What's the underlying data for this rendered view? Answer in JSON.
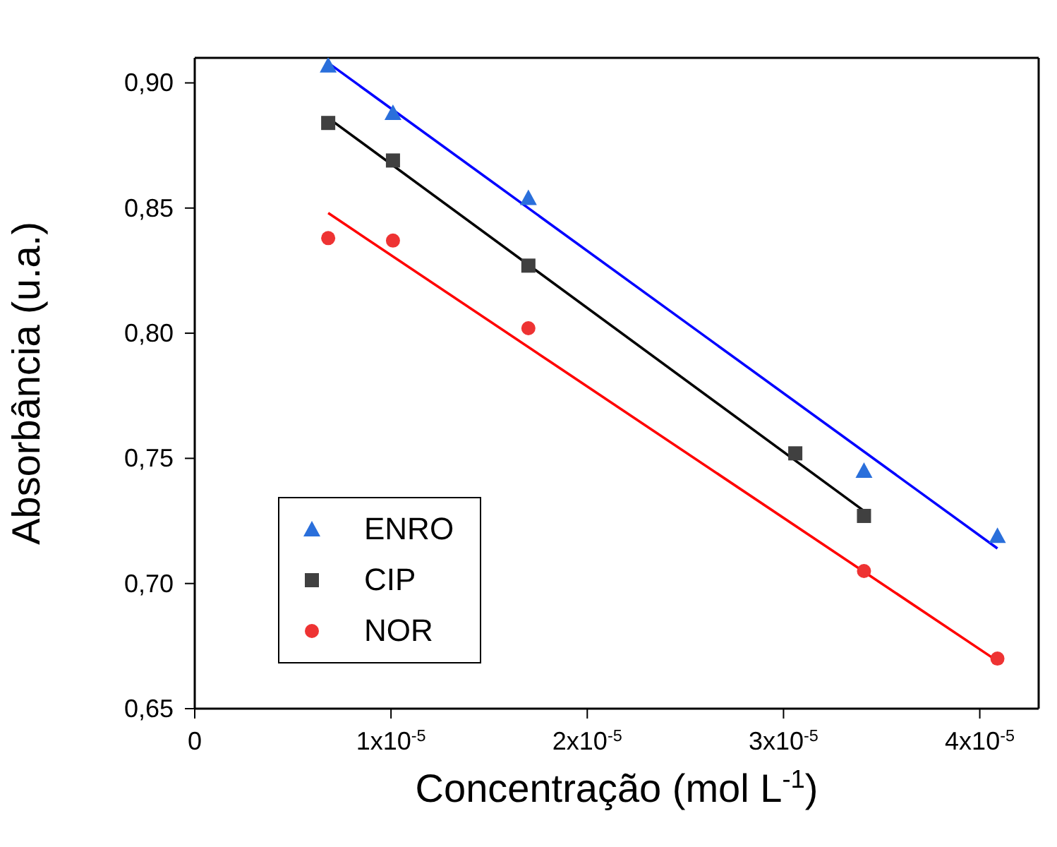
{
  "chart_data": {
    "type": "scatter",
    "xlabel": "Concentração (mol L$^{-1}$)",
    "ylabel": "Absorbância (u.a.)",
    "xlim": [
      0,
      4.3e-05
    ],
    "xticks": [
      {
        "value": 0,
        "label": "0"
      },
      {
        "value": 1e-05,
        "label": "1x10$^{-5}$"
      },
      {
        "value": 2e-05,
        "label": "2x10$^{-5}$"
      },
      {
        "value": 3e-05,
        "label": "3x10$^{-5}$"
      },
      {
        "value": 4e-05,
        "label": "4x10$^{-5}$"
      }
    ],
    "ylim": [
      0.65,
      0.91
    ],
    "yticks": [
      {
        "value": 0.65,
        "label": "0,65"
      },
      {
        "value": 0.7,
        "label": "0,70"
      },
      {
        "value": 0.75,
        "label": "0,75"
      },
      {
        "value": 0.8,
        "label": "0,80"
      },
      {
        "value": 0.85,
        "label": "0,85"
      },
      {
        "value": 0.9,
        "label": "0,90"
      }
    ],
    "legend": "bottom left",
    "series": [
      {
        "name": "ENRO",
        "marker": "triangle",
        "color": "#2a6fdb",
        "x": [
          6.8e-06,
          1.01e-05,
          1.7e-05,
          3.41e-05,
          4.09e-05
        ],
        "values": [
          0.907,
          0.888,
          0.854,
          0.745,
          0.719
        ]
      },
      {
        "name": "CIP",
        "marker": "square",
        "color": "#404040",
        "x": [
          6.8e-06,
          1.01e-05,
          1.7e-05,
          3.06e-05,
          3.41e-05
        ],
        "values": [
          0.884,
          0.869,
          0.827,
          0.752,
          0.727
        ]
      },
      {
        "name": "NOR",
        "marker": "circle",
        "color": "#ee3333",
        "x": [
          6.8e-06,
          1.01e-05,
          1.7e-05,
          3.41e-05,
          4.09e-05
        ],
        "values": [
          0.838,
          0.837,
          0.802,
          0.705,
          0.67
        ]
      },
      {
        "type": "line",
        "color": "#0000ff",
        "x": [
          6.8e-06,
          4.09e-05
        ],
        "values": [
          0.908,
          0.714
        ]
      },
      {
        "type": "line",
        "color": "#000000",
        "x": [
          6.8e-06,
          3.41e-05
        ],
        "values": [
          0.886,
          0.729
        ]
      },
      {
        "type": "line",
        "color": "#ff0000",
        "x": [
          6.8e-06,
          4.09e-05
        ],
        "values": [
          0.848,
          0.669
        ]
      }
    ]
  }
}
